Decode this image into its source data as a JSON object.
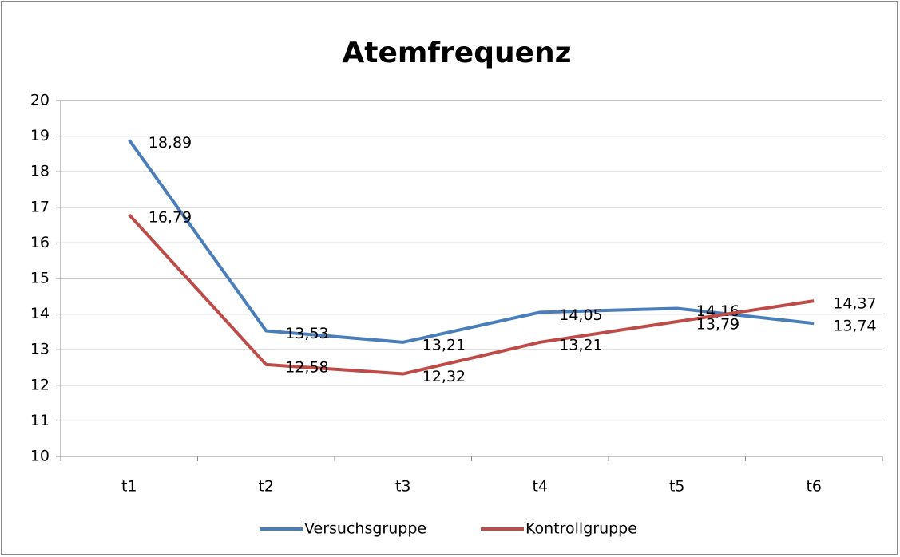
{
  "chart_data": {
    "type": "line",
    "title": "Atemfrequenz",
    "categories": [
      "t1",
      "t2",
      "t3",
      "t4",
      "t5",
      "t6"
    ],
    "series": [
      {
        "name": "Versuchsgruppe",
        "color": "#4a7ebb",
        "values": [
          18.89,
          13.53,
          13.21,
          14.05,
          14.16,
          13.74
        ],
        "value_labels": [
          "18,89",
          "13,53",
          "13,21",
          "14,05",
          "14,16",
          "13,74"
        ]
      },
      {
        "name": "Kontrollgruppe",
        "color": "#be4b48",
        "values": [
          16.79,
          12.58,
          12.32,
          13.21,
          13.79,
          14.37
        ],
        "value_labels": [
          "16,79",
          "12,58",
          "12,32",
          "13,21",
          "13,79",
          "14,37"
        ]
      }
    ],
    "ylim": [
      10,
      20
    ],
    "yticks": [
      10,
      11,
      12,
      13,
      14,
      15,
      16,
      17,
      18,
      19,
      20
    ],
    "grid": true,
    "legend": "bottom"
  }
}
